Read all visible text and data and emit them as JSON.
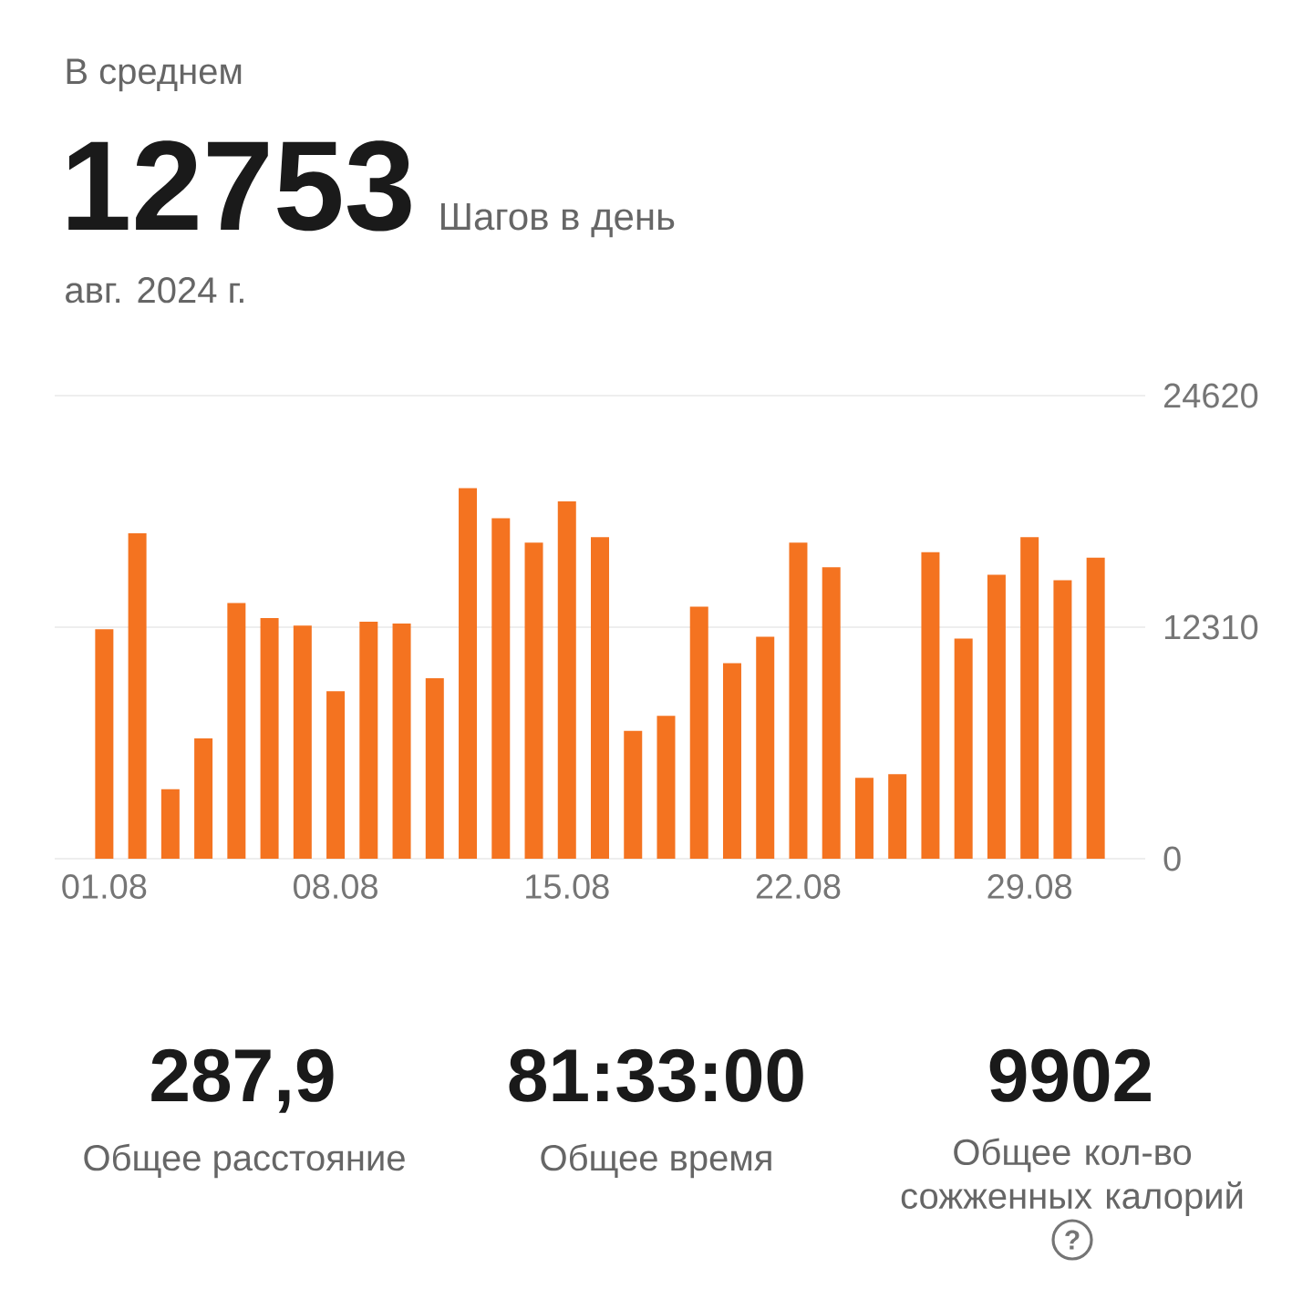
{
  "chart_data": {
    "type": "bar",
    "annotations": [
      "В среднем",
      "12753",
      "Шагов в день",
      "авг. 2024 г.",
      "287,9",
      "Общее расстояние",
      "81:33:00",
      "Общее время",
      "9902",
      "Общее кол-во сожженных калорий",
      "?"
    ],
    "categories": [
      "01.08",
      null,
      null,
      null,
      null,
      null,
      null,
      "08.08",
      null,
      null,
      null,
      null,
      null,
      null,
      "15.08",
      null,
      null,
      null,
      null,
      null,
      null,
      "22.08",
      null,
      null,
      null,
      null,
      null,
      null,
      "29.08",
      null,
      null
    ],
    "values": [
      12200,
      17300,
      3700,
      6400,
      13600,
      12800,
      12400,
      8900,
      12600,
      12500,
      9600,
      19700,
      18100,
      16800,
      19000,
      17100,
      6800,
      7600,
      13400,
      10400,
      11800,
      16800,
      15500,
      4300,
      4500,
      16300,
      11700,
      15100,
      17100,
      14800,
      16000
    ],
    "color": "#f47320",
    "ylim": [
      0,
      24620
    ],
    "yticks": [
      0,
      12310,
      24620
    ],
    "grid": "y"
  }
}
